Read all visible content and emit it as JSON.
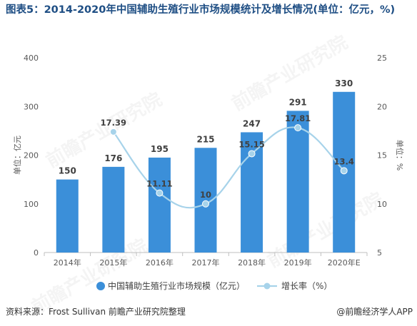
{
  "title": "图表5：2014-2020年中国辅助生殖行业市场规模统计及增长情况(单位：亿元，%)",
  "source": "资料来源：Frost Sullivan 前瞻产业研究院整理",
  "brand": "@前瞻经济学人APP",
  "watermark": "前瞻产业研究院",
  "colors": {
    "bar": "#3b8fd9",
    "line": "#a7d3ea",
    "title": "#1e4e84"
  },
  "chart_data": {
    "type": "bar",
    "categories": [
      "2014年",
      "2015年",
      "2016年",
      "2017年",
      "2018年",
      "2019年",
      "2020年E"
    ],
    "series": [
      {
        "name": "中国辅助生殖行业市场规模（亿元）",
        "type": "bar",
        "axis": "left",
        "values": [
          150,
          176,
          195,
          215,
          247,
          291,
          330
        ]
      },
      {
        "name": "增长率（%）",
        "type": "line",
        "axis": "right",
        "values": [
          null,
          17.39,
          11.11,
          10,
          15.15,
          17.81,
          13.4
        ]
      }
    ],
    "ylabel": "单位：亿元",
    "y2label": "单位：%",
    "ylim": [
      0,
      400
    ],
    "y2lim": [
      5,
      25
    ],
    "yticks": [
      0,
      100,
      200,
      300,
      400
    ],
    "y2ticks": [
      5,
      10,
      15,
      20,
      25
    ],
    "grid": false,
    "legend": "bottom"
  }
}
